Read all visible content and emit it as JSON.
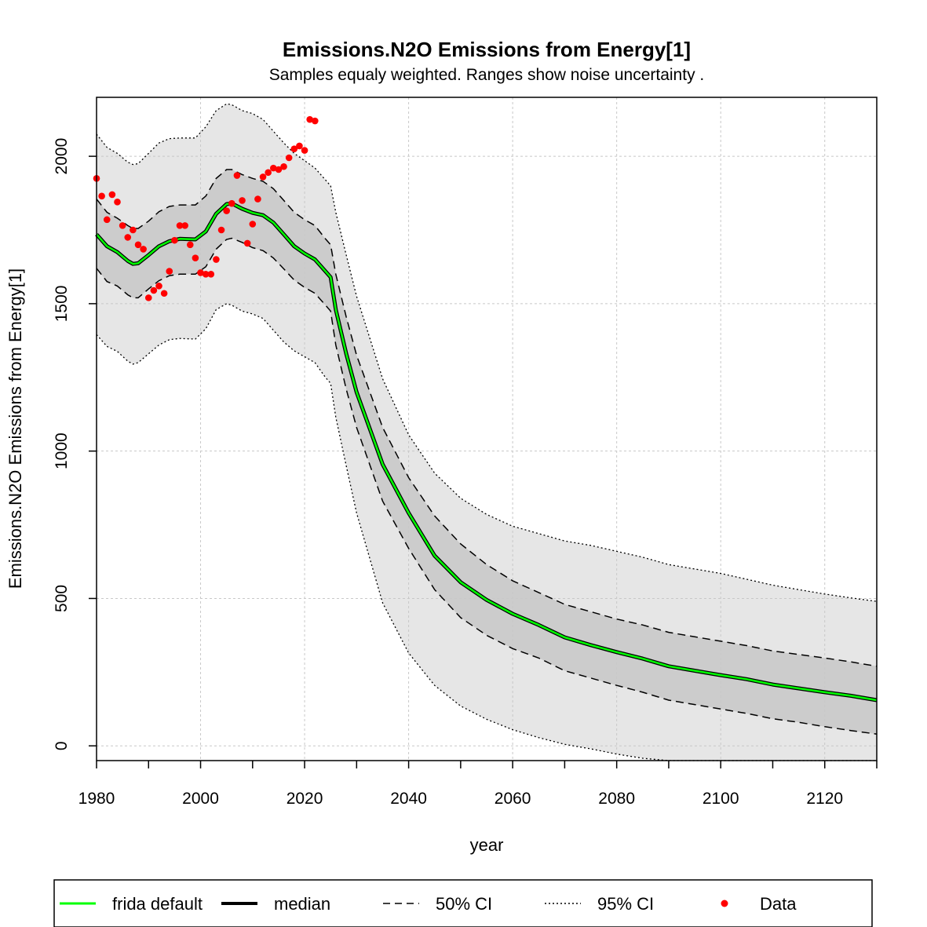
{
  "chart_data": {
    "type": "line",
    "title": "Emissions.N2O Emissions from Energy[1]",
    "subtitle": "Samples equaly weighted. Ranges show  noise uncertainty .",
    "xlabel": "year",
    "ylabel": "Emissions.N2O Emissions from Energy[1]",
    "xlim": [
      1980,
      2130
    ],
    "ylim": [
      -50,
      2200
    ],
    "x_ticks": [
      1980,
      2000,
      2020,
      2040,
      2060,
      2080,
      2100,
      2120
    ],
    "y_ticks": [
      0,
      500,
      1000,
      1500,
      2000
    ],
    "grid": true,
    "legend_position": "bottom",
    "legend": [
      {
        "label": "frida default",
        "style": "solid-green"
      },
      {
        "label": "median",
        "style": "solid-thick-black"
      },
      {
        "label": "50% CI",
        "style": "dashed"
      },
      {
        "label": "95% CI",
        "style": "dotted"
      },
      {
        "label": "Data",
        "style": "red-point"
      }
    ],
    "colors": {
      "frida_default": "#00ff00",
      "median": "#000000",
      "data": "#ff0000",
      "band50": "#cccccc",
      "band95": "#e6e6e6",
      "grid": "#c8c8c8"
    },
    "series": [
      {
        "name": "frida default",
        "x": [
          1980,
          1982,
          1984,
          1986,
          1987,
          1988,
          1990,
          1992,
          1994,
          1996,
          1999,
          2001,
          2003,
          2005,
          2006,
          2008,
          2010,
          2012,
          2014,
          2016,
          2018,
          2020,
          2022,
          2024,
          2025,
          2026,
          2028,
          2030,
          2035,
          2040,
          2045,
          2050,
          2055,
          2060,
          2065,
          2070,
          2075,
          2080,
          2085,
          2090,
          2095,
          2100,
          2105,
          2110,
          2115,
          2120,
          2125,
          2130
        ],
        "y": [
          1735,
          1695,
          1675,
          1645,
          1635,
          1637,
          1665,
          1695,
          1712,
          1720,
          1718,
          1745,
          1805,
          1838,
          1840,
          1822,
          1808,
          1800,
          1775,
          1735,
          1695,
          1670,
          1650,
          1610,
          1590,
          1480,
          1330,
          1200,
          955,
          790,
          645,
          555,
          495,
          448,
          410,
          368,
          342,
          318,
          296,
          270,
          255,
          240,
          226,
          208,
          195,
          182,
          170,
          155
        ]
      },
      {
        "name": "median",
        "x": [
          1980,
          1982,
          1984,
          1986,
          1987,
          1988,
          1990,
          1992,
          1994,
          1996,
          1999,
          2001,
          2003,
          2005,
          2006,
          2008,
          2010,
          2012,
          2014,
          2016,
          2018,
          2020,
          2022,
          2024,
          2025,
          2026,
          2028,
          2030,
          2035,
          2040,
          2045,
          2050,
          2055,
          2060,
          2065,
          2070,
          2075,
          2080,
          2085,
          2090,
          2095,
          2100,
          2105,
          2110,
          2115,
          2120,
          2125,
          2130
        ],
        "y": [
          1735,
          1695,
          1675,
          1645,
          1635,
          1637,
          1665,
          1695,
          1712,
          1720,
          1718,
          1745,
          1805,
          1838,
          1840,
          1822,
          1808,
          1800,
          1775,
          1735,
          1695,
          1670,
          1650,
          1610,
          1590,
          1480,
          1330,
          1200,
          955,
          790,
          645,
          555,
          495,
          448,
          410,
          368,
          342,
          318,
          296,
          270,
          255,
          240,
          226,
          208,
          195,
          182,
          170,
          155
        ]
      },
      {
        "name": "50% CI",
        "x": [
          1980,
          1982,
          1984,
          1986,
          1987,
          1988,
          1990,
          1992,
          1994,
          1996,
          1999,
          2001,
          2003,
          2005,
          2006,
          2008,
          2010,
          2012,
          2014,
          2016,
          2018,
          2020,
          2022,
          2024,
          2025,
          2026,
          2028,
          2030,
          2035,
          2040,
          2045,
          2050,
          2055,
          2060,
          2065,
          2070,
          2075,
          2080,
          2085,
          2090,
          2095,
          2100,
          2105,
          2110,
          2115,
          2120,
          2125,
          2130
        ],
        "upper": [
          1855,
          1810,
          1790,
          1765,
          1755,
          1755,
          1780,
          1812,
          1830,
          1835,
          1835,
          1865,
          1925,
          1955,
          1955,
          1938,
          1925,
          1915,
          1890,
          1850,
          1810,
          1785,
          1765,
          1720,
          1700,
          1600,
          1455,
          1325,
          1080,
          910,
          780,
          685,
          615,
          560,
          520,
          480,
          455,
          430,
          410,
          385,
          370,
          355,
          340,
          322,
          310,
          298,
          285,
          270
        ],
        "lower": [
          1620,
          1575,
          1560,
          1530,
          1520,
          1520,
          1550,
          1578,
          1595,
          1600,
          1600,
          1625,
          1685,
          1718,
          1722,
          1708,
          1690,
          1680,
          1655,
          1618,
          1580,
          1555,
          1535,
          1495,
          1475,
          1360,
          1210,
          1080,
          830,
          670,
          530,
          435,
          375,
          330,
          298,
          255,
          230,
          205,
          182,
          155,
          140,
          125,
          110,
          92,
          80,
          65,
          52,
          40
        ]
      },
      {
        "name": "95% CI",
        "x": [
          1980,
          1982,
          1984,
          1986,
          1987,
          1988,
          1990,
          1992,
          1994,
          1996,
          1999,
          2001,
          2003,
          2005,
          2006,
          2008,
          2010,
          2012,
          2014,
          2016,
          2018,
          2020,
          2022,
          2024,
          2025,
          2026,
          2028,
          2030,
          2035,
          2040,
          2045,
          2050,
          2055,
          2060,
          2065,
          2070,
          2075,
          2080,
          2085,
          2090,
          2095,
          2100,
          2105,
          2110,
          2115,
          2120,
          2125,
          2130
        ],
        "upper": [
          2075,
          2030,
          2010,
          1980,
          1972,
          1975,
          2010,
          2045,
          2060,
          2062,
          2062,
          2100,
          2155,
          2178,
          2175,
          2155,
          2145,
          2125,
          2085,
          2045,
          2010,
          1985,
          1960,
          1920,
          1900,
          1810,
          1665,
          1525,
          1245,
          1055,
          925,
          840,
          785,
          745,
          720,
          695,
          680,
          660,
          640,
          615,
          600,
          585,
          565,
          545,
          530,
          515,
          502,
          490
        ],
        "lower": [
          1395,
          1355,
          1338,
          1305,
          1295,
          1300,
          1330,
          1360,
          1378,
          1382,
          1380,
          1415,
          1480,
          1500,
          1495,
          1475,
          1465,
          1450,
          1410,
          1370,
          1340,
          1320,
          1300,
          1250,
          1230,
          1115,
          950,
          790,
          485,
          315,
          205,
          135,
          90,
          55,
          28,
          5,
          -10,
          -28,
          -42,
          -55,
          -65,
          -75,
          -85,
          -95,
          -103,
          -110,
          -117,
          -125
        ]
      }
    ],
    "data_points": {
      "name": "Data",
      "x": [
        1980,
        1981,
        1982,
        1983,
        1984,
        1985,
        1986,
        1987,
        1988,
        1989,
        1990,
        1991,
        1992,
        1993,
        1994,
        1995,
        1996,
        1997,
        1998,
        1999,
        2000,
        2001,
        2002,
        2003,
        2004,
        2005,
        2006,
        2007,
        2008,
        2009,
        2010,
        2011,
        2012,
        2013,
        2014,
        2015,
        2016,
        2017,
        2018,
        2019,
        2020,
        2021,
        2022
      ],
      "y": [
        1925,
        1865,
        1785,
        1870,
        1845,
        1765,
        1725,
        1750,
        1700,
        1685,
        1520,
        1545,
        1560,
        1535,
        1610,
        1715,
        1765,
        1765,
        1700,
        1655,
        1605,
        1600,
        1600,
        1650,
        1750,
        1815,
        1840,
        1935,
        1850,
        1705,
        1770,
        1855,
        1930,
        1945,
        1960,
        1955,
        1965,
        1995,
        2025,
        2035,
        2020,
        2125,
        2120
      ]
    }
  }
}
